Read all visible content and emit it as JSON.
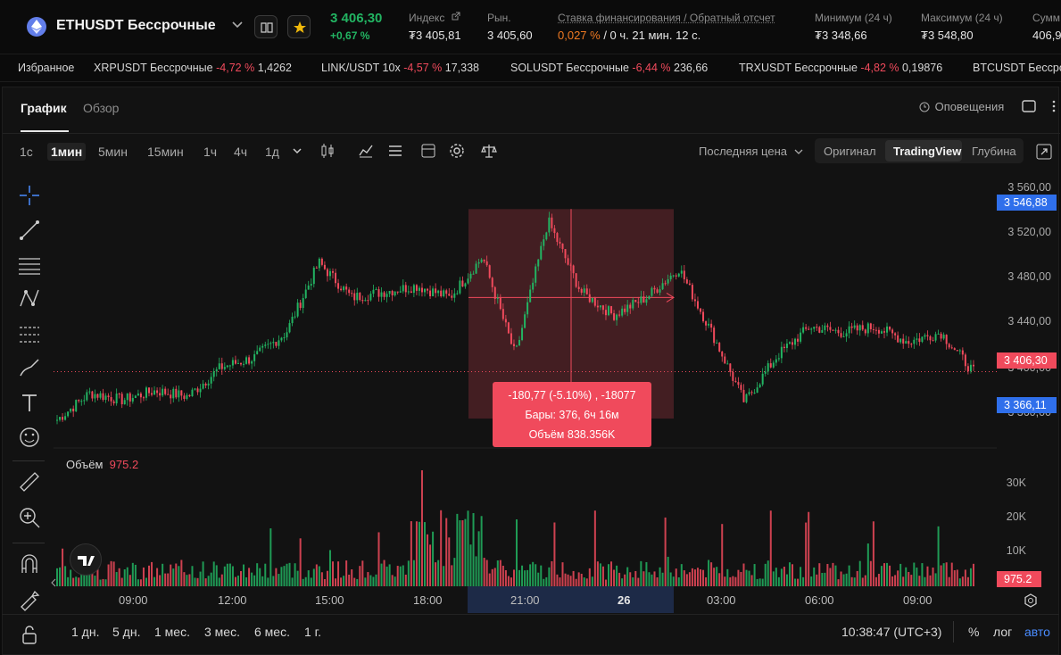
{
  "header": {
    "symbol": "ETHUSDT Бессрочные",
    "last_price": "3 406,30",
    "change": "+0,67 %",
    "index_label": "Индекс",
    "index_value": "₮3 405,81",
    "market_label": "Рын.",
    "market_value": "3 405,60",
    "funding_label": "Ставка финансирования / Обратный отсчет",
    "funding_rate": "0,027 %",
    "funding_countdown": "/ 0 ч. 21 мин. 12 с.",
    "min_label": "Минимум (24 ч)",
    "min_value": "₮3 348,66",
    "max_label": "Максимум (24 ч)",
    "max_value": "₮3 548,80",
    "sum_label": "Сумм",
    "sum_value": "406,9"
  },
  "ticker": [
    {
      "name": "Избранное",
      "change": "",
      "price": ""
    },
    {
      "name": "XRPUSDT Бессрочные",
      "change": "-4,72 %",
      "price": "1,4262"
    },
    {
      "name": "LINK/USDT 10x",
      "change": "-4,57 %",
      "price": "17,338"
    },
    {
      "name": "SOLUSDT Бессрочные",
      "change": "-6,44 %",
      "price": "236,66"
    },
    {
      "name": "TRXUSDT Бессрочные",
      "change": "-4,82 %",
      "price": "0,19876"
    },
    {
      "name": "BTCUSDT Бессроч",
      "change": "",
      "price": ""
    }
  ],
  "tabs": {
    "chart": "График",
    "overview": "Обзор",
    "alerts": "Оповещения"
  },
  "timeframes": [
    "1с",
    "1мин",
    "5мин",
    "15мин",
    "1ч",
    "4ч",
    "1д"
  ],
  "price_type": "Последняя цена",
  "views": [
    "Оригинал",
    "TradingView",
    "Глубина"
  ],
  "price_axis": [
    "3 560,00",
    "3 520,00",
    "3 480,00",
    "3 440,00",
    "3 400,00",
    "3 360,00"
  ],
  "price_tags": {
    "high": "3 546,88",
    "current": "3 406,30",
    "low": "3 366,11"
  },
  "volume": {
    "label": "Объём",
    "value": "975.2",
    "axis": [
      "30K",
      "20K",
      "10K"
    ],
    "tag": "975.2"
  },
  "time_axis": [
    "09:00",
    "12:00",
    "15:00",
    "18:00",
    "21:00",
    "26",
    "03:00",
    "06:00",
    "09:00"
  ],
  "measure_tooltip": {
    "line1": "-180,77 (-5.10%) , -18077",
    "line2": "Бары: 376, 6ч 16м",
    "line3": "Объём 838.356K"
  },
  "ranges": [
    "1 дн.",
    "5 дн.",
    "1 мес.",
    "3 мес.",
    "6 мес.",
    "1 г."
  ],
  "clock": "10:38:47 (UTC+3)",
  "scale_options": {
    "percent": "%",
    "log": "лог",
    "auto": "авто"
  },
  "colors": {
    "up": "#22b462",
    "down": "#f04a5c",
    "accent": "#2f6feb"
  },
  "chart_data": {
    "type": "candlestick",
    "x": [
      "07:00",
      "08:00",
      "09:00",
      "10:00",
      "11:00",
      "12:00",
      "13:00",
      "14:00",
      "15:00",
      "16:00",
      "17:00",
      "18:00",
      "19:00",
      "20:00",
      "21:00",
      "22:00",
      "23:00",
      "00:00",
      "01:00",
      "02:00",
      "03:00",
      "04:00",
      "05:00",
      "06:00",
      "07:00",
      "08:00",
      "09:00",
      "10:00",
      "10:38"
    ],
    "close": [
      3365,
      3388,
      3382,
      3390,
      3385,
      3410,
      3418,
      3440,
      3500,
      3470,
      3475,
      3480,
      3470,
      3505,
      3420,
      3536,
      3475,
      3455,
      3470,
      3495,
      3440,
      3380,
      3420,
      3445,
      3440,
      3445,
      3432,
      3440,
      3406
    ],
    "ylim": [
      3340,
      3570
    ],
    "volume_ylim": [
      0,
      35000
    ]
  }
}
